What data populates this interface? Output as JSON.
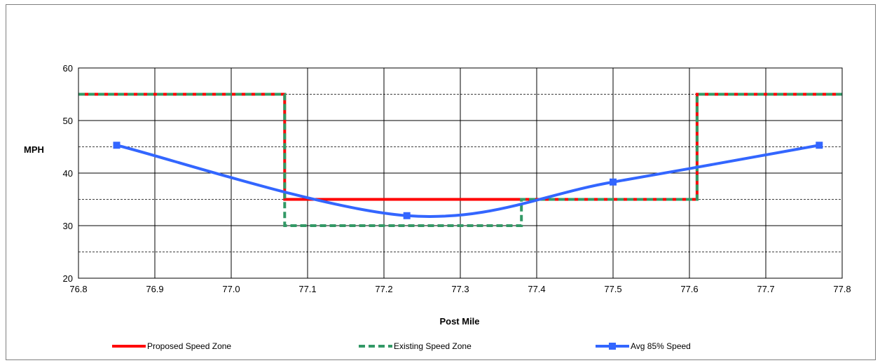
{
  "chart_data": {
    "type": "line",
    "xlabel": "Post Mile",
    "ylabel": "MPH",
    "xlim": [
      76.8,
      77.8
    ],
    "ylim": [
      20,
      60
    ],
    "x_ticks": [
      "76.8",
      "76.9",
      "77.0",
      "77.1",
      "77.2",
      "77.3",
      "77.4",
      "77.5",
      "77.6",
      "77.7",
      "77.8"
    ],
    "y_ticks": [
      "20",
      "30",
      "40",
      "50",
      "60"
    ],
    "grid": "major solid, minor dashed at 25/35/45/55",
    "legend_position": "bottom",
    "series": [
      {
        "name": "Proposed Speed Zone",
        "color": "#ff0000",
        "style": "solid",
        "x": [
          76.8,
          77.07,
          77.07,
          77.61,
          77.61,
          77.8
        ],
        "y": [
          55,
          55,
          35,
          35,
          55,
          55
        ]
      },
      {
        "name": "Existing Speed Zone",
        "color": "#339966",
        "style": "dashed",
        "x": [
          76.8,
          77.07,
          77.07,
          77.38,
          77.38,
          77.61,
          77.61,
          77.8
        ],
        "y": [
          55,
          55,
          30,
          30,
          35,
          35,
          55,
          55
        ]
      },
      {
        "name": "Avg 85% Speed",
        "color": "#3366ff",
        "style": "smooth",
        "marker": "square",
        "x": [
          76.85,
          77.23,
          77.5,
          77.77
        ],
        "y": [
          45.3,
          31.9,
          38.3,
          45.3
        ]
      }
    ]
  }
}
